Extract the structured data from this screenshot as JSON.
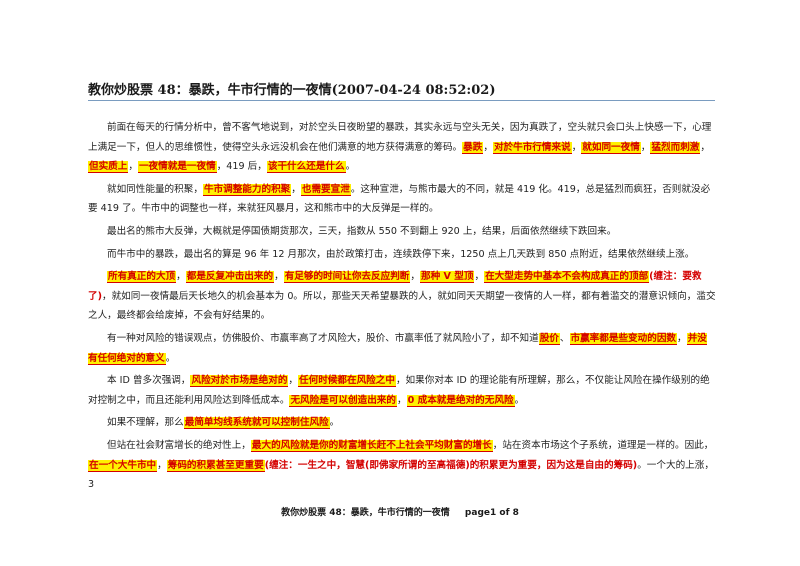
{
  "title": "教你炒股票 48：暴跌，牛市行情的一夜情(2007-04-24 08:52:02)",
  "paragraphs": [
    [
      {
        "t": "前面在每天的行情分析中，曾不客气地说到，对於空头日夜盼望的暴跌，其实永远与空头无关，因为真跌了，空头就只会口头上快感一下，心理上满足一下，但人的思维惯性，使得空头永远没机会在他们满意的地方获得满意的筹码。"
      },
      {
        "t": "暴跌",
        "s": "hl"
      },
      {
        "t": "，"
      },
      {
        "t": "对於牛市行情来说",
        "s": "hl"
      },
      {
        "t": "，"
      },
      {
        "t": "就如同一夜情",
        "s": "hl"
      },
      {
        "t": "，"
      },
      {
        "t": "猛烈而刺激",
        "s": "hl"
      },
      {
        "t": "，"
      },
      {
        "t": "但实质上",
        "s": "hl"
      },
      {
        "t": "，"
      },
      {
        "t": "一夜情就是一夜情",
        "s": "hl"
      },
      {
        "t": "，419 后，"
      },
      {
        "t": "该干什么还是什么",
        "s": "hl"
      },
      {
        "t": "。"
      }
    ],
    [
      {
        "t": "就如同性能量的积聚，"
      },
      {
        "t": "牛市调整能力的积聚",
        "s": "hl"
      },
      {
        "t": "，"
      },
      {
        "t": "也需要宣泄",
        "s": "hl"
      },
      {
        "t": "。这种宣泄，与熊市最大的不同，就是 419 化。419，总是猛烈而疯狂，否则就没必要 419 了。牛市中的调整也一样，来就狂风暴月，这和熊市中的大反弹是一样的。"
      }
    ],
    [
      {
        "t": "最出名的熊市大反弹，大概就是停国债期货那次，三天，指数从 550 不到翻上 920 上，结果，后面依然继续下跌回来。"
      }
    ],
    [
      {
        "t": "而牛市中的暴跌，最出名的算是 96 年 12 月那次，由於政策打击，连续跌停下来，1250 点上几天跌到 850 点附近，结果依然继续上涨。"
      }
    ],
    [
      {
        "t": "所有真正的大顶",
        "s": "hl"
      },
      {
        "t": "，"
      },
      {
        "t": "都是反复冲击出来的",
        "s": "hl"
      },
      {
        "t": "，"
      },
      {
        "t": "有足够的时间让你去反应判断",
        "s": "hl"
      },
      {
        "t": "，"
      },
      {
        "t": "那种 V 型顶",
        "s": "hl"
      },
      {
        "t": "，"
      },
      {
        "t": "在大型走势中基本不会构成真正的顶部",
        "s": "hl"
      },
      {
        "t": "(缠注：要救了)",
        "s": "red"
      },
      {
        "t": "，就如同一夜情最后天长地久的机会基本为 0。所以，那些天天希望暴跌的人，就如同天天期望一夜情的人一样，都有着滥交的潜意识倾向，滥交之人，最终都会给废掉，不会有好结果的。"
      }
    ],
    [
      {
        "t": "有一种对风险的错误观点，仿佛股价、市赢率高了才风险大，股价、市赢率低了就风险小了，却不知道"
      },
      {
        "t": "股价",
        "s": "hl"
      },
      {
        "t": "、"
      },
      {
        "t": "市赢率都是些变动的因数",
        "s": "hl"
      },
      {
        "t": "，"
      },
      {
        "t": "并没有任何绝对的意义",
        "s": "hl"
      },
      {
        "t": "。"
      }
    ],
    [
      {
        "t": "本 ID 曾多次强调，"
      },
      {
        "t": "风险对於市场是绝对的",
        "s": "hl"
      },
      {
        "t": "，"
      },
      {
        "t": "任何时候都在风险之中",
        "s": "hl"
      },
      {
        "t": "，如果你对本 ID 的理论能有所理解，那么，不仅能让风险在操作级别的绝对控制之中，而且还能利用风险达到降低成本。"
      },
      {
        "t": "无风险是可以创造出来的",
        "s": "hl"
      },
      {
        "t": "，"
      },
      {
        "t": "0 成本就是绝对的无风险",
        "s": "hl"
      },
      {
        "t": "。"
      }
    ],
    [
      {
        "t": "如果不理解，那么"
      },
      {
        "t": "最简单均线系统就可以控制住风险",
        "s": "hl"
      },
      {
        "t": "。"
      }
    ],
    [
      {
        "t": "但站在社会财富增长的绝对性上，"
      },
      {
        "t": "最大的风险就是你的财富增长赶不上社会平均财富的增长",
        "s": "hl"
      },
      {
        "t": "，站在资本市场这个子系统，道理是一样的。因此，"
      },
      {
        "t": "在一个大牛市中",
        "s": "hl"
      },
      {
        "t": "，"
      },
      {
        "t": "筹码的积累甚至更重要",
        "s": "hl"
      },
      {
        "t": "(缠注：一生之中，智慧(即佛家所谓的至高福德)的积累更为重要，因为这是自由的筹码)",
        "s": "red"
      },
      {
        "t": "。一个大的上涨，3"
      }
    ]
  ],
  "footer": {
    "doc_title": "教你炒股票 48：暴跌，牛市行情的一夜情",
    "page": "page1 of 8"
  }
}
